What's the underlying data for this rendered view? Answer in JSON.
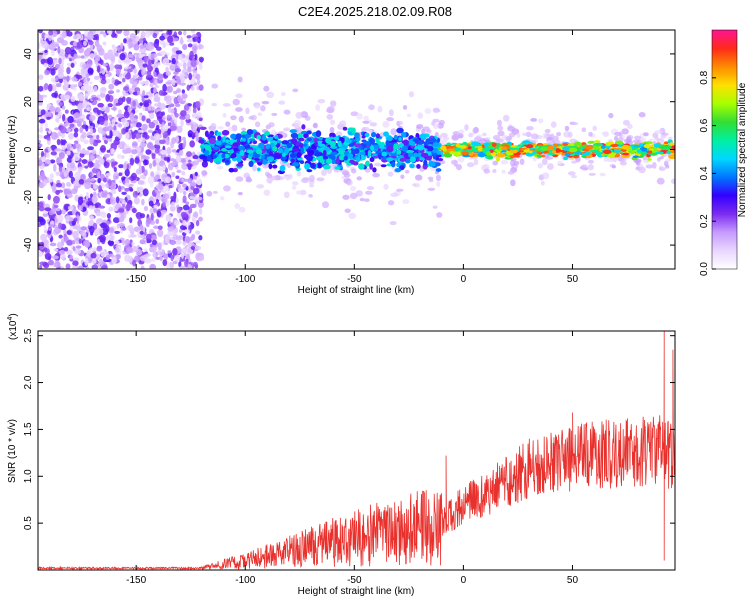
{
  "figure": {
    "title": "C2E4.2025.218.02.09.R08"
  },
  "colors": {
    "line": "#e8302c",
    "spectrogram_colormap": [
      "#ffffff",
      "#e9d6ff",
      "#c79aff",
      "#7a2cf0",
      "#3300ff",
      "#0077ff",
      "#00d8ff",
      "#00f0a0",
      "#33dd33",
      "#a8ff00",
      "#ffe000",
      "#ff8a00",
      "#ff2a1a",
      "#ff1493"
    ]
  },
  "chart_data": [
    {
      "type": "heatmap",
      "title": "C2E4.2025.218.02.09.R08",
      "xlabel": "Height of straight line (km)",
      "ylabel": "Frequency (Hz)",
      "xlim": [
        -195,
        97
      ],
      "ylim": [
        -50,
        50
      ],
      "x_ticks": [
        "-150",
        "-100",
        "-50",
        "0",
        "50"
      ],
      "y_ticks": [
        "40",
        "20",
        "0",
        "-20",
        "-40"
      ],
      "colorbar": {
        "label": "Normalized spectral amplitude",
        "range": [
          0,
          1
        ],
        "ticks": [
          "0.0",
          "0.2",
          "0.4",
          "0.6",
          "0.8"
        ]
      },
      "regions": [
        {
          "x_range": [
            -195,
            -120
          ],
          "freq_range": [
            -50,
            50
          ],
          "amplitude": "low (0.0-0.15), broadband noise"
        },
        {
          "x_range": [
            -120,
            -10
          ],
          "center_freq": 0,
          "halfwidth_hz": 6,
          "amplitude": "0.2-0.5"
        },
        {
          "x_range": [
            -10,
            97
          ],
          "center_freq": 0,
          "halfwidth_hz": 3,
          "amplitude": "0.4-1.0"
        }
      ],
      "grid": false
    },
    {
      "type": "line",
      "xlabel": "Height of straight line (km)",
      "ylabel": "SNR (10 * v/v)",
      "y_scale_label": "(x10",
      "y_scale_exp": "4",
      "y_scale_suffix": ")",
      "xlim": [
        -195,
        97
      ],
      "ylim": [
        0,
        2.55
      ],
      "x_ticks": [
        "-150",
        "-100",
        "-50",
        "0",
        "50"
      ],
      "y_ticks": [
        "0.5",
        "1.0",
        "1.5",
        "2.0",
        "2.5"
      ],
      "trend": [
        {
          "x": -195,
          "y": 0.02
        },
        {
          "x": -120,
          "y": 0.02
        },
        {
          "x": -110,
          "y": 0.06
        },
        {
          "x": -100,
          "y": 0.1
        },
        {
          "x": -90,
          "y": 0.15
        },
        {
          "x": -75,
          "y": 0.22
        },
        {
          "x": -60,
          "y": 0.3
        },
        {
          "x": -45,
          "y": 0.37
        },
        {
          "x": -30,
          "y": 0.42
        },
        {
          "x": -20,
          "y": 0.45
        },
        {
          "x": -10,
          "y": 0.5
        },
        {
          "x": -5,
          "y": 0.6
        },
        {
          "x": 0,
          "y": 0.7
        },
        {
          "x": 10,
          "y": 0.8
        },
        {
          "x": 20,
          "y": 0.95
        },
        {
          "x": 30,
          "y": 1.08
        },
        {
          "x": 40,
          "y": 1.15
        },
        {
          "x": 50,
          "y": 1.2
        },
        {
          "x": 60,
          "y": 1.22
        },
        {
          "x": 70,
          "y": 1.25
        },
        {
          "x": 80,
          "y": 1.25
        },
        {
          "x": 88,
          "y": 1.3
        },
        {
          "x": 92,
          "y": 1.25
        },
        {
          "x": 97,
          "y": 1.2
        }
      ],
      "peaks": [
        {
          "x": -8,
          "y": 1.22
        },
        {
          "x": 50,
          "y": 1.68
        },
        {
          "x": 83,
          "y": 1.6
        },
        {
          "x": 92,
          "y": 2.55
        },
        {
          "x": 96,
          "y": 2.35
        },
        {
          "x": 92,
          "y": 0.1
        }
      ],
      "series": [
        {
          "values_description": "noisy SNR trace"
        }
      ],
      "grid": false
    }
  ]
}
